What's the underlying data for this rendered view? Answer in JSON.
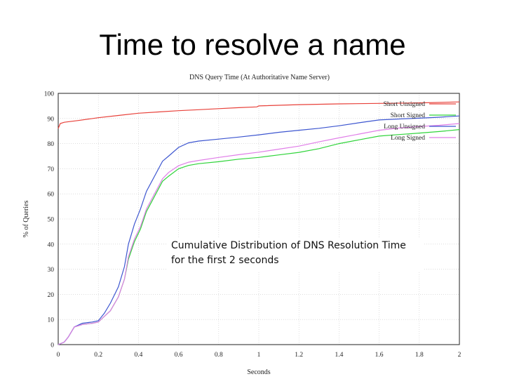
{
  "slide": {
    "title": "Time to resolve a name",
    "caption_line1": "Cumulative Distribution of DNS Resolution Time",
    "caption_line2": "for the first 2 seconds"
  },
  "chart_data": {
    "type": "line",
    "title": "DNS Query Time (At Authoritative Name Server)",
    "xlabel": "Seconds",
    "ylabel": "% of Queries",
    "xlim": [
      0,
      2
    ],
    "ylim": [
      0,
      100
    ],
    "xticks": [
      "0",
      "0.2",
      "0.4",
      "0.6",
      "0.8",
      "1",
      "1.2",
      "1.4",
      "1.6",
      "1.8",
      "2"
    ],
    "yticks": [
      "0",
      "10",
      "20",
      "30",
      "40",
      "50",
      "60",
      "70",
      "80",
      "90",
      "100"
    ],
    "grid": true,
    "legend_position": "top-right",
    "series": [
      {
        "name": "Short Unsigned",
        "color": "#e8413a",
        "x": [
          0,
          0.01,
          0.03,
          0.1,
          0.2,
          0.3,
          0.4,
          0.5,
          0.6,
          0.7,
          0.8,
          0.9,
          0.99,
          1.0,
          1.2,
          1.4,
          1.6,
          1.8,
          2.0
        ],
        "y": [
          86,
          88,
          88.5,
          89.2,
          90.3,
          91.2,
          92.1,
          92.6,
          93.1,
          93.5,
          93.9,
          94.3,
          94.6,
          95.0,
          95.5,
          95.8,
          96.0,
          96.2,
          96.6
        ]
      },
      {
        "name": "Short Signed",
        "color": "#2fd43a",
        "x": [
          0,
          0.03,
          0.05,
          0.08,
          0.12,
          0.17,
          0.2,
          0.22,
          0.26,
          0.3,
          0.33,
          0.35,
          0.38,
          0.41,
          0.44,
          0.48,
          0.52,
          0.55,
          0.6,
          0.65,
          0.7,
          0.8,
          0.9,
          1.0,
          1.1,
          1.2,
          1.3,
          1.4,
          1.5,
          1.6,
          1.7,
          1.8,
          1.9,
          2.0
        ],
        "y": [
          0,
          1,
          3,
          7,
          8,
          8.5,
          9,
          10.5,
          13.5,
          19,
          26,
          34,
          41,
          46,
          53,
          59,
          65,
          67,
          70,
          71.3,
          72,
          72.8,
          73.8,
          74.5,
          75.5,
          76.5,
          78,
          80,
          81.5,
          83,
          83.6,
          84.2,
          84.8,
          85.6
        ]
      },
      {
        "name": "Long Unsigned",
        "color": "#3d56d0",
        "x": [
          0,
          0.03,
          0.05,
          0.08,
          0.12,
          0.17,
          0.2,
          0.23,
          0.26,
          0.3,
          0.33,
          0.35,
          0.38,
          0.41,
          0.44,
          0.48,
          0.52,
          0.55,
          0.6,
          0.65,
          0.7,
          0.8,
          0.9,
          1.0,
          1.1,
          1.2,
          1.3,
          1.4,
          1.5,
          1.6,
          1.7,
          1.8,
          1.9,
          2.0
        ],
        "y": [
          0,
          1,
          3,
          7,
          8.5,
          9,
          9.5,
          12.5,
          16.5,
          23,
          31,
          40,
          48,
          54,
          61,
          67,
          73,
          75,
          78.5,
          80.3,
          81,
          81.8,
          82.6,
          83.5,
          84.5,
          85.3,
          86.1,
          87.1,
          88.3,
          89.4,
          89.8,
          90.1,
          90.5,
          91
        ]
      },
      {
        "name": "Long Signed",
        "color": "#e07ee8",
        "x": [
          0,
          0.03,
          0.05,
          0.08,
          0.12,
          0.17,
          0.2,
          0.22,
          0.26,
          0.3,
          0.33,
          0.35,
          0.38,
          0.41,
          0.44,
          0.48,
          0.52,
          0.55,
          0.6,
          0.65,
          0.7,
          0.8,
          0.9,
          1.0,
          1.1,
          1.2,
          1.3,
          1.4,
          1.5,
          1.6,
          1.7,
          1.8,
          1.9,
          2.0
        ],
        "y": [
          0,
          1,
          3,
          7,
          8,
          8.5,
          9,
          10.5,
          13.5,
          19,
          26,
          35,
          42,
          47,
          54,
          60,
          66,
          68.5,
          71.2,
          72.6,
          73.3,
          74.5,
          75.6,
          76.6,
          77.8,
          79,
          80.7,
          82.3,
          83.8,
          85.3,
          86.2,
          86.8,
          87.3,
          88
        ]
      }
    ]
  }
}
